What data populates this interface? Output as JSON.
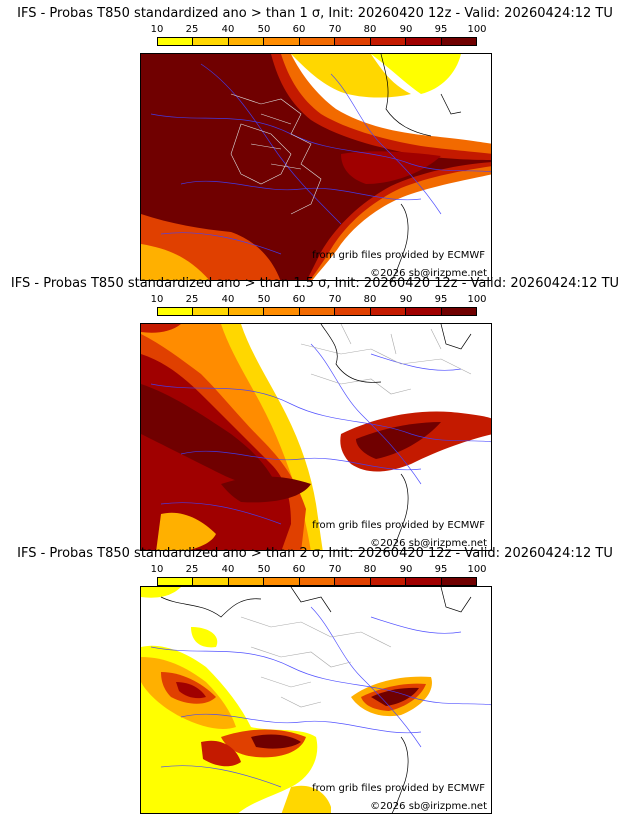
{
  "colorbar": {
    "ticks": [
      "10",
      "25",
      "40",
      "50",
      "60",
      "70",
      "80",
      "90",
      "95",
      "100"
    ],
    "colors": [
      "#ffff00",
      "#ffd700",
      "#ffb000",
      "#ff8c00",
      "#f26a00",
      "#e04000",
      "#c41a00",
      "#a00000",
      "#700000"
    ]
  },
  "credits": {
    "source": "from grib files provided by ECMWF",
    "copyright": "©2026 sb@irizpme.net"
  },
  "panels": [
    {
      "title": "IFS - Probas T850  standardized ano > than 1 σ, Init: 20260420 12z - Valid: 20260424:12 TU"
    },
    {
      "title": "IFS - Probas T850  standardized ano > than 1.5 σ, Init: 20260420 12z - Valid: 20260424:12 TU"
    },
    {
      "title": "IFS - Probas T850  standardized ano > than 2 σ, Init: 20260420 12z - Valid: 20260424:12 TU"
    }
  ]
}
